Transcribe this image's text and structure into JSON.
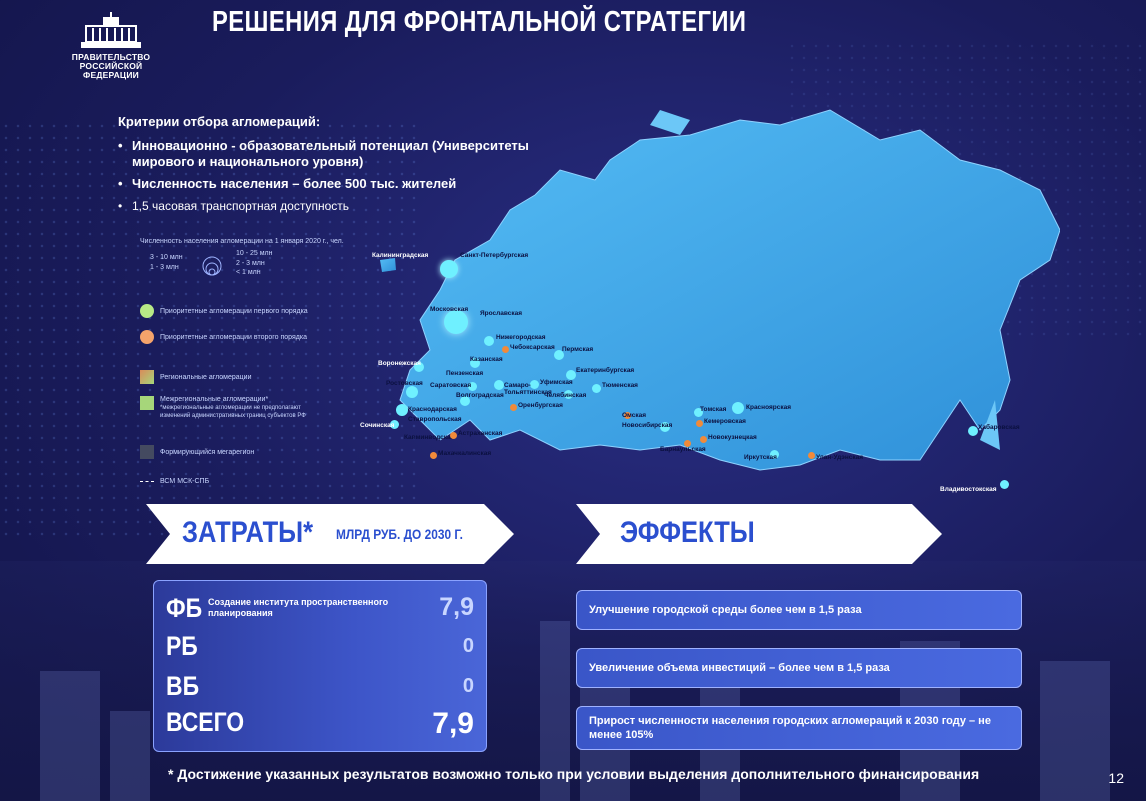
{
  "header": {
    "emblem_caption": [
      "ПРАВИТЕЛЬСТВО",
      "РОССИЙСКОЙ",
      "ФЕДЕРАЦИИ"
    ],
    "title": "РЕШЕНИЯ ДЛЯ ФРОНТАЛЬНОЙ СТРАТЕГИИ"
  },
  "criteria": {
    "heading": "Критерии отбора агломераций:",
    "items": [
      "Инновационно - образовательный потенциал (Университеты мирового и национального уровня)",
      "Численность населения – более 500 тыс. жителей",
      "1,5 часовая транспортная доступность"
    ]
  },
  "legend": {
    "population_title": "Численность населения агломерации на 1 января 2020 г., чел.",
    "scale": [
      "3 - 10 млн",
      "1 - 3 млн",
      "10 - 25 млн",
      "2 - 3 млн",
      "< 1 млн"
    ],
    "items": [
      {
        "label": "Приоритетные агломерации первого порядка",
        "color": "#b8e986"
      },
      {
        "label": "Приоритетные агломерации второго порядка",
        "color": "#f5a36b"
      },
      {
        "label": "Региональные агломерации",
        "color": "#d98b5a"
      },
      {
        "label": "Межрегиональные агломерации*",
        "color": "#a6d67a"
      },
      {
        "label": "Формирующийся мегарегион",
        "color": "#444a60"
      },
      {
        "label": "ВСМ МСК-СПБ",
        "color": "#ffffff"
      }
    ],
    "note": "*межрегиональные агломерации не предполагают изменений административных границ субъектов РФ"
  },
  "map": {
    "land_color": "#3aa6ec",
    "cities": [
      {
        "name": "Калининградская",
        "type": "primary"
      },
      {
        "name": "Санкт-Петербургская",
        "type": "primary"
      },
      {
        "name": "Московская",
        "type": "primary"
      },
      {
        "name": "Ярославская",
        "type": "primary"
      },
      {
        "name": "Нижегородская",
        "type": "primary"
      },
      {
        "name": "Чебоксарская",
        "type": "secondary"
      },
      {
        "name": "Казанская",
        "type": "primary"
      },
      {
        "name": "Пермская",
        "type": "primary"
      },
      {
        "name": "Екатеринбургская",
        "type": "primary"
      },
      {
        "name": "Тюменская",
        "type": "primary"
      },
      {
        "name": "Челябинская",
        "type": "primary"
      },
      {
        "name": "Уфимская",
        "type": "primary"
      },
      {
        "name": "Самаро-Тольяттинская",
        "type": "primary"
      },
      {
        "name": "Саратовская",
        "type": "primary"
      },
      {
        "name": "Пензенская",
        "type": "primary"
      },
      {
        "name": "Воронежская",
        "type": "primary"
      },
      {
        "name": "Ростовская",
        "type": "primary"
      },
      {
        "name": "Волгоградская",
        "type": "primary"
      },
      {
        "name": "Оренбургская",
        "type": "secondary"
      },
      {
        "name": "Краснодарская",
        "type": "primary"
      },
      {
        "name": "Ставропольская",
        "type": "primary"
      },
      {
        "name": "Сочинская",
        "type": "primary"
      },
      {
        "name": "Кавминводская",
        "type": "primary"
      },
      {
        "name": "Астраханская",
        "type": "secondary"
      },
      {
        "name": "Махачкалинская",
        "type": "secondary"
      },
      {
        "name": "Омская",
        "type": "secondary"
      },
      {
        "name": "Новосибирская",
        "type": "primary"
      },
      {
        "name": "Томская",
        "type": "primary"
      },
      {
        "name": "Кемеровская",
        "type": "secondary"
      },
      {
        "name": "Новокузнецкая",
        "type": "secondary"
      },
      {
        "name": "Барнаульская",
        "type": "secondary"
      },
      {
        "name": "Красноярская",
        "type": "primary"
      },
      {
        "name": "Иркутская",
        "type": "primary"
      },
      {
        "name": "Улан-Удэнская",
        "type": "secondary"
      },
      {
        "name": "Хабаровская",
        "type": "primary"
      },
      {
        "name": "Владивостокская",
        "type": "primary"
      }
    ]
  },
  "costs": {
    "banner_title": "ЗАТРАТЫ*",
    "banner_unit": "МЛРД РУБ. ДО 2030 Г.",
    "rows": [
      {
        "label": "ФБ",
        "desc": "Создание института пространственного планирования",
        "value": "7,9"
      },
      {
        "label": "РБ",
        "desc": "",
        "value": "0"
      },
      {
        "label": "ВБ",
        "desc": "",
        "value": "0"
      },
      {
        "label": "ВСЕГО",
        "desc": "",
        "value": "7,9"
      }
    ]
  },
  "effects": {
    "banner_title": "ЭФФЕКТЫ",
    "items": [
      "Улучшение городской среды более чем в 1,5 раза",
      "Увеличение объема инвестиций – более чем в 1,5 раза",
      "Прирост численности населения городских агломераций к 2030 году – не менее 105%"
    ]
  },
  "footer": {
    "note": "* Достижение указанных результатов возможно только при условии выделения дополнительного финансирования",
    "page_number": "12"
  }
}
